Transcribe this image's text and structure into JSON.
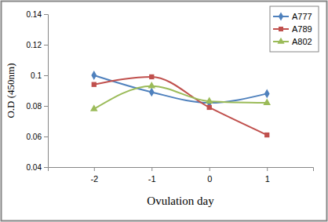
{
  "chart_data": {
    "type": "line",
    "x_label": "Ovulation day",
    "y_label": "O.D (450nm)",
    "x": [
      -2,
      -1,
      0,
      1
    ],
    "series": [
      {
        "name": "A777",
        "color": "#4f81bd",
        "marker": "diamond",
        "values": [
          0.1,
          0.089,
          0.082,
          0.088
        ]
      },
      {
        "name": "A789",
        "color": "#c0504d",
        "marker": "square",
        "values": [
          0.094,
          0.099,
          0.079,
          0.061
        ]
      },
      {
        "name": "A802",
        "color": "#9bbb59",
        "marker": "triangle",
        "values": [
          0.078,
          0.093,
          0.083,
          0.082
        ]
      }
    ],
    "xlim": [
      -2.8,
      1.8
    ],
    "xticks": [
      -2,
      -1,
      0,
      1
    ],
    "ylim": [
      0.04,
      0.14
    ],
    "yticks": [
      0.04,
      0.06,
      0.08,
      0.1,
      0.12,
      0.14
    ],
    "grid": false,
    "legend": "top-right",
    "line_style": "smooth"
  }
}
